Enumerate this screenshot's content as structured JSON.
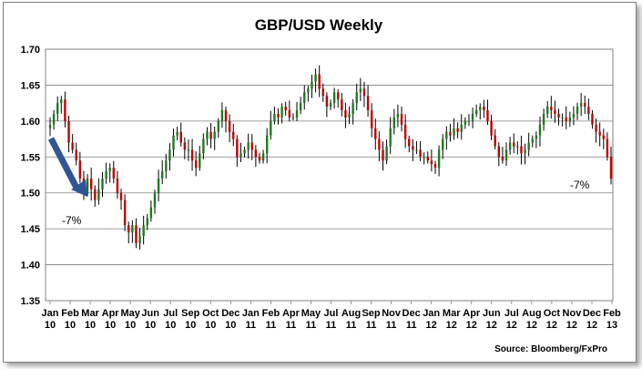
{
  "chart_data": {
    "type": "ohlc",
    "title": "GBP/USD Weekly",
    "source": "Source: Bloomberg/FxPro",
    "ylim": [
      1.35,
      1.7
    ],
    "yticks": [
      "1.35",
      "1.40",
      "1.45",
      "1.50",
      "1.55",
      "1.60",
      "1.65",
      "1.70"
    ],
    "xticks": [
      [
        "Jan",
        "10"
      ],
      [
        "Feb",
        "10"
      ],
      [
        "Mar",
        "10"
      ],
      [
        "Apr",
        "10"
      ],
      [
        "May",
        "10"
      ],
      [
        "Jun",
        "10"
      ],
      [
        "Jul",
        "10"
      ],
      [
        "Sep",
        "10"
      ],
      [
        "Oct",
        "10"
      ],
      [
        "Dec",
        "10"
      ],
      [
        "Jan",
        "11"
      ],
      [
        "Feb",
        "11"
      ],
      [
        "Apr",
        "11"
      ],
      [
        "May",
        "11"
      ],
      [
        "Jul",
        "11"
      ],
      [
        "Aug",
        "11"
      ],
      [
        "Sep",
        "11"
      ],
      [
        "Nov",
        "11"
      ],
      [
        "Dec",
        "11"
      ],
      [
        "Jan",
        "12"
      ],
      [
        "Mar",
        "12"
      ],
      [
        "Apr",
        "12"
      ],
      [
        "Jun",
        "12"
      ],
      [
        "Jul",
        "12"
      ],
      [
        "Aug",
        "12"
      ],
      [
        "Oct",
        "12"
      ],
      [
        "Nov",
        "12"
      ],
      [
        "Dec",
        "12"
      ],
      [
        "Feb",
        "13"
      ]
    ],
    "annotations": [
      {
        "text": "-7%"
      },
      {
        "text": "-7%"
      }
    ],
    "closes": [
      1.595,
      1.61,
      1.625,
      1.63,
      1.6,
      1.57,
      1.56,
      1.545,
      1.52,
      1.5,
      1.52,
      1.505,
      1.49,
      1.505,
      1.52,
      1.53,
      1.535,
      1.52,
      1.5,
      1.49,
      1.455,
      1.445,
      1.455,
      1.43,
      1.44,
      1.455,
      1.465,
      1.48,
      1.5,
      1.52,
      1.53,
      1.545,
      1.56,
      1.58,
      1.585,
      1.57,
      1.56,
      1.56,
      1.545,
      1.535,
      1.555,
      1.575,
      1.585,
      1.575,
      1.585,
      1.6,
      1.615,
      1.6,
      1.585,
      1.575,
      1.55,
      1.555,
      1.56,
      1.57,
      1.56,
      1.55,
      1.545,
      1.555,
      1.58,
      1.6,
      1.61,
      1.605,
      1.62,
      1.615,
      1.605,
      1.605,
      1.615,
      1.625,
      1.64,
      1.645,
      1.655,
      1.665,
      1.645,
      1.635,
      1.62,
      1.625,
      1.64,
      1.63,
      1.615,
      1.605,
      1.61,
      1.625,
      1.64,
      1.645,
      1.635,
      1.615,
      1.59,
      1.575,
      1.56,
      1.545,
      1.565,
      1.59,
      1.605,
      1.61,
      1.595,
      1.575,
      1.565,
      1.56,
      1.56,
      1.55,
      1.55,
      1.545,
      1.54,
      1.535,
      1.56,
      1.575,
      1.585,
      1.58,
      1.59,
      1.585,
      1.595,
      1.6,
      1.6,
      1.61,
      1.615,
      1.62,
      1.615,
      1.6,
      1.58,
      1.565,
      1.55,
      1.545,
      1.56,
      1.57,
      1.565,
      1.565,
      1.555,
      1.56,
      1.57,
      1.575,
      1.58,
      1.595,
      1.61,
      1.62,
      1.615,
      1.61,
      1.605,
      1.605,
      1.6,
      1.605,
      1.61,
      1.62,
      1.625,
      1.62,
      1.61,
      1.595,
      1.585,
      1.58,
      1.575,
      1.55,
      1.52
    ]
  }
}
